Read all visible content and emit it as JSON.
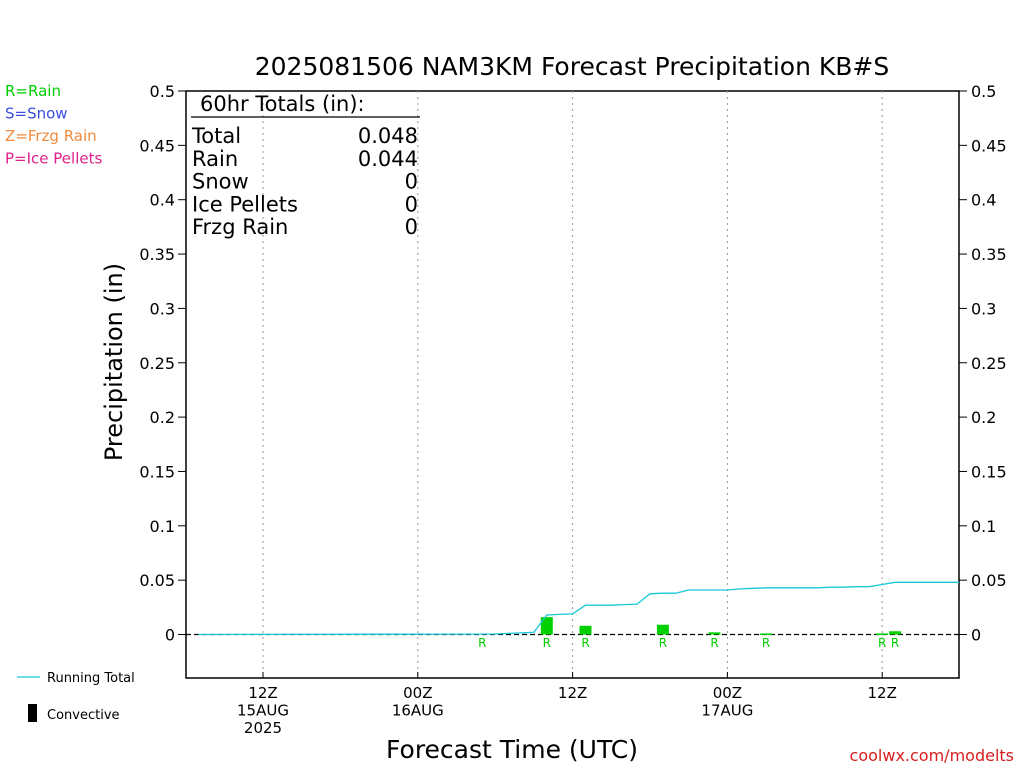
{
  "colors": {
    "rain": "#00d000",
    "snow": "#3a4fe0",
    "frzg_rain": "#f08a3c",
    "ice_pellets": "#e0208a",
    "running_total": "#16c8d8",
    "convective": "#000000",
    "credit": "#d81e1e"
  },
  "type_legend": [
    {
      "text": "R=Rain",
      "color_key": "rain"
    },
    {
      "text": "S=Snow",
      "color_key": "snow"
    },
    {
      "text": "Z=Frzg Rain",
      "color_key": "frzg_rain"
    },
    {
      "text": "P=Ice Pellets",
      "color_key": "ice_pellets"
    }
  ],
  "totals_box": {
    "header": "60hr Totals (in):",
    "rows": [
      {
        "label": "Total",
        "value": "0.048"
      },
      {
        "label": "Rain",
        "value": "0.044"
      },
      {
        "label": "Snow",
        "value": "0"
      },
      {
        "label": "Ice Pellets",
        "value": "0"
      },
      {
        "label": "Frzg Rain",
        "value": "0"
      }
    ]
  },
  "bottom_legend": {
    "running_total": "Running Total",
    "convective": "Convective"
  },
  "credit": "coolwx.com/modelts",
  "chart_data": {
    "type": "bar",
    "title": "2025081506 NAM3KM Forecast Precipitation KB#S",
    "xlabel": "Forecast Time (UTC)",
    "ylabel": "Precipitation (in)",
    "x_units": "forecast hour",
    "xlim": [
      0,
      60
    ],
    "ylim": [
      -0.04,
      0.5
    ],
    "y_ticks": [
      "0",
      "0.05",
      "0.1",
      "0.15",
      "0.2",
      "0.25",
      "0.3",
      "0.35",
      "0.4",
      "0.45",
      "0.5"
    ],
    "y_tick_values": [
      0,
      0.05,
      0.1,
      0.15,
      0.2,
      0.25,
      0.3,
      0.35,
      0.4,
      0.45,
      0.5
    ],
    "x_ticks": [
      {
        "hour": 6,
        "lines": [
          "12Z",
          "15AUG",
          "2025"
        ]
      },
      {
        "hour": 18,
        "lines": [
          "00Z",
          "16AUG"
        ]
      },
      {
        "hour": 30,
        "lines": [
          "12Z"
        ]
      },
      {
        "hour": 42,
        "lines": [
          "00Z",
          "17AUG"
        ]
      },
      {
        "hour": 54,
        "lines": [
          "12Z"
        ]
      }
    ],
    "grid_x": true,
    "grid_y": false,
    "series": [
      {
        "name": "Running Total",
        "type": "line",
        "points": [
          [
            1,
            0
          ],
          [
            24,
            0.0005
          ],
          [
            25,
            0.001
          ],
          [
            26,
            0.0015
          ],
          [
            27,
            0.002
          ],
          [
            28,
            0.018
          ],
          [
            29,
            0.0185
          ],
          [
            30,
            0.019
          ],
          [
            31,
            0.027
          ],
          [
            32,
            0.027
          ],
          [
            33,
            0.027
          ],
          [
            34,
            0.0275
          ],
          [
            35,
            0.028
          ],
          [
            36,
            0.0375
          ],
          [
            37,
            0.038
          ],
          [
            38,
            0.038
          ],
          [
            39,
            0.041
          ],
          [
            40,
            0.041
          ],
          [
            41,
            0.041
          ],
          [
            42,
            0.041
          ],
          [
            43,
            0.042
          ],
          [
            44,
            0.0425
          ],
          [
            45,
            0.043
          ],
          [
            46,
            0.043
          ],
          [
            47,
            0.043
          ],
          [
            48,
            0.043
          ],
          [
            49,
            0.043
          ],
          [
            50,
            0.0435
          ],
          [
            51,
            0.0435
          ],
          [
            52,
            0.044
          ],
          [
            53,
            0.044
          ],
          [
            54,
            0.046
          ],
          [
            55,
            0.048
          ],
          [
            56,
            0.048
          ],
          [
            57,
            0.048
          ],
          [
            58,
            0.048
          ],
          [
            59,
            0.048
          ],
          [
            60,
            0.048
          ]
        ]
      },
      {
        "name": "Rain",
        "type": "bar",
        "bars": [
          {
            "hour": 28,
            "value": 0.016
          },
          {
            "hour": 31,
            "value": 0.008
          },
          {
            "hour": 37,
            "value": 0.009
          },
          {
            "hour": 41,
            "value": 0.002
          },
          {
            "hour": 45,
            "value": 0.001
          },
          {
            "hour": 54,
            "value": 0.001
          },
          {
            "hour": 55,
            "value": 0.003
          }
        ]
      }
    ],
    "type_markers": [
      {
        "hour": 23,
        "text": "R"
      },
      {
        "hour": 28,
        "text": "R"
      },
      {
        "hour": 31,
        "text": "R"
      },
      {
        "hour": 37,
        "text": "R"
      },
      {
        "hour": 41,
        "text": "R"
      },
      {
        "hour": 45,
        "text": "R"
      },
      {
        "hour": 54,
        "text": "R"
      },
      {
        "hour": 55,
        "text": "R"
      }
    ]
  }
}
